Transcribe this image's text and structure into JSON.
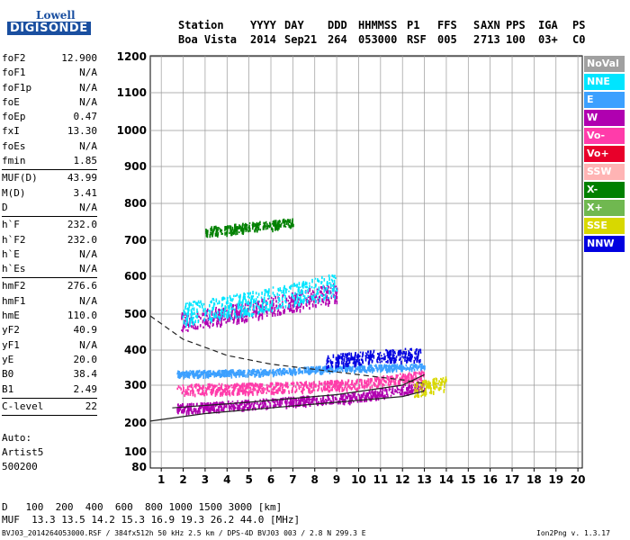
{
  "brand": {
    "line1": "Lowell",
    "line2": "DIGISONDE"
  },
  "header": {
    "labels": [
      "Station",
      "YYYY",
      "DAY",
      "DDD",
      "HHMMSS",
      "P1",
      "FFS",
      "S",
      "AXN",
      "PPS",
      "IGA",
      "PS"
    ],
    "values": [
      "Boa Vista",
      "2014",
      "Sep21",
      "264",
      "053000",
      "RSF",
      "005",
      "2",
      "713",
      "100",
      "03+",
      "C0"
    ]
  },
  "params": [
    {
      "group": 1,
      "items": [
        [
          "foF2",
          "12.900"
        ],
        [
          "foF1",
          "N/A"
        ],
        [
          "foF1p",
          "N/A"
        ],
        [
          "foE",
          "N/A"
        ],
        [
          "foEp",
          "0.47"
        ],
        [
          "fxI",
          "13.30"
        ],
        [
          "foEs",
          "N/A"
        ],
        [
          "fmin",
          "1.85"
        ]
      ]
    },
    {
      "group": 2,
      "items": [
        [
          "MUF(D)",
          "43.99"
        ],
        [
          "M(D)",
          "3.41"
        ],
        [
          "D",
          "N/A"
        ]
      ]
    },
    {
      "group": 3,
      "items": [
        [
          "h`F",
          "232.0"
        ],
        [
          "h`F2",
          "232.0"
        ],
        [
          "h`E",
          "N/A"
        ],
        [
          "h`Es",
          "N/A"
        ]
      ]
    },
    {
      "group": 4,
      "items": [
        [
          "hmF2",
          "276.6"
        ],
        [
          "hmF1",
          "N/A"
        ],
        [
          "hmE",
          "110.0"
        ],
        [
          "yF2",
          "40.9"
        ],
        [
          "yF1",
          "N/A"
        ],
        [
          "yE",
          "20.0"
        ],
        [
          "B0",
          "38.4"
        ],
        [
          "B1",
          "2.49"
        ]
      ]
    },
    {
      "group": 5,
      "items": [
        [
          "C-level",
          "22"
        ]
      ]
    }
  ],
  "auto": {
    "label": "Auto:",
    "software": "Artist5",
    "version": "500200"
  },
  "muf_table": {
    "d_label": "D",
    "d_values": "100  200  400  600  800 1000 1500 3000",
    "d_unit": "[km]",
    "muf_label": "MUF",
    "muf_values": "13.3 13.5 14.2 15.3 16.9 19.3 26.2 44.0",
    "muf_unit": "[MHz]"
  },
  "footer": {
    "file": "BVJ03_2014264053000.RSF / 384fx512h 50 kHz 2.5 km / DPS-4D BVJ03 003 / 2.8 N 299.3 E",
    "version": "Ion2Png v. 1.3.17"
  },
  "legend": [
    {
      "label": "NoVal",
      "color": "#a0a0a0"
    },
    {
      "label": "NNE",
      "color": "#00e5ff"
    },
    {
      "label": "E",
      "color": "#3ca0ff"
    },
    {
      "label": "W",
      "color": "#b000b0"
    },
    {
      "label": "Vo-",
      "color": "#ff3caa"
    },
    {
      "label": "Vo+",
      "color": "#e8002a"
    },
    {
      "label": "SSW",
      "color": "#ffb4b4"
    },
    {
      "label": "X-",
      "color": "#008000"
    },
    {
      "label": "X+",
      "color": "#70b850"
    },
    {
      "label": "SSE",
      "color": "#d8d800"
    },
    {
      "label": "NNW",
      "color": "#0000e0"
    }
  ],
  "chart_data": {
    "type": "scatter",
    "xlim": [
      0.5,
      20.2
    ],
    "ylim": [
      80,
      1200
    ],
    "x_ticks": [
      1,
      2,
      3,
      4,
      5,
      6,
      7,
      8,
      9,
      10,
      11,
      12,
      13,
      14,
      15,
      16,
      17,
      18,
      19,
      20
    ],
    "y_ticks": [
      80,
      100,
      200,
      300,
      400,
      500,
      600,
      700,
      800,
      900,
      1000,
      1100,
      1200
    ],
    "grid": true,
    "traces": [
      {
        "color": "#b000b0",
        "band": [
          [
            1.7,
            240
          ],
          [
            6,
            255
          ],
          [
            10,
            270
          ],
          [
            13,
            300
          ]
        ],
        "spread": 12
      },
      {
        "color": "#3ca0ff",
        "band": [
          [
            1.7,
            335
          ],
          [
            6,
            340
          ],
          [
            9,
            350
          ],
          [
            13,
            355
          ]
        ],
        "spread": 8
      },
      {
        "color": "#ff3caa",
        "band": [
          [
            1.7,
            290
          ],
          [
            6,
            295
          ],
          [
            10,
            305
          ],
          [
            13,
            330
          ]
        ],
        "spread": 14
      },
      {
        "color": "#0000e0",
        "band": [
          [
            8.5,
            370
          ],
          [
            11,
            385
          ],
          [
            12.8,
            390
          ]
        ],
        "spread": 18
      },
      {
        "color": "#b000b0",
        "band": [
          [
            1.9,
            480
          ],
          [
            5,
            510
          ],
          [
            9,
            560
          ]
        ],
        "spread": 25
      },
      {
        "color": "#00e5ff",
        "band": [
          [
            1.9,
            500
          ],
          [
            5,
            530
          ],
          [
            9,
            580
          ]
        ],
        "spread": 30
      },
      {
        "color": "#008000",
        "band": [
          [
            3,
            725
          ],
          [
            7,
            750
          ]
        ],
        "spread": 12
      },
      {
        "color": "#d8d800",
        "band": [
          [
            12.5,
            290
          ],
          [
            14,
            310
          ]
        ],
        "spread": 20
      }
    ],
    "profile_curves": [
      {
        "style": "solid",
        "points": [
          [
            0.5,
            205
          ],
          [
            3,
            225
          ],
          [
            6,
            240
          ],
          [
            9,
            255
          ],
          [
            12,
            270
          ],
          [
            13,
            285
          ]
        ]
      },
      {
        "style": "solid",
        "points": [
          [
            1.5,
            240
          ],
          [
            5,
            255
          ],
          [
            9,
            275
          ],
          [
            12,
            300
          ],
          [
            13,
            330
          ]
        ]
      },
      {
        "style": "dashed",
        "points": [
          [
            0.5,
            495
          ],
          [
            2,
            430
          ],
          [
            4,
            385
          ],
          [
            6,
            360
          ],
          [
            8,
            345
          ],
          [
            10,
            330
          ],
          [
            12,
            315
          ],
          [
            13,
            305
          ]
        ]
      }
    ]
  }
}
